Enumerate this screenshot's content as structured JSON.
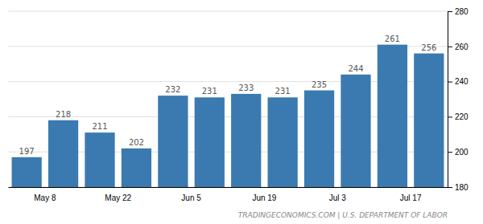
{
  "chart_data": {
    "type": "bar",
    "categories": [
      "May 8",
      null,
      "May 22",
      null,
      "Jun 5",
      null,
      "Jun 19",
      null,
      "Jul 3",
      null,
      "Jul 17",
      null
    ],
    "values": [
      197,
      218,
      211,
      202,
      232,
      231,
      233,
      231,
      235,
      244,
      261,
      256
    ],
    "color": "#3a7ab0",
    "ylim": [
      180,
      280
    ],
    "yticks": [
      180,
      200,
      220,
      240,
      260,
      280
    ],
    "grid": true,
    "data_labels": true,
    "annotations": [
      "TRADINGECONOMICS.COM | U.S. DEPARTMENT OF LABOR"
    ]
  }
}
